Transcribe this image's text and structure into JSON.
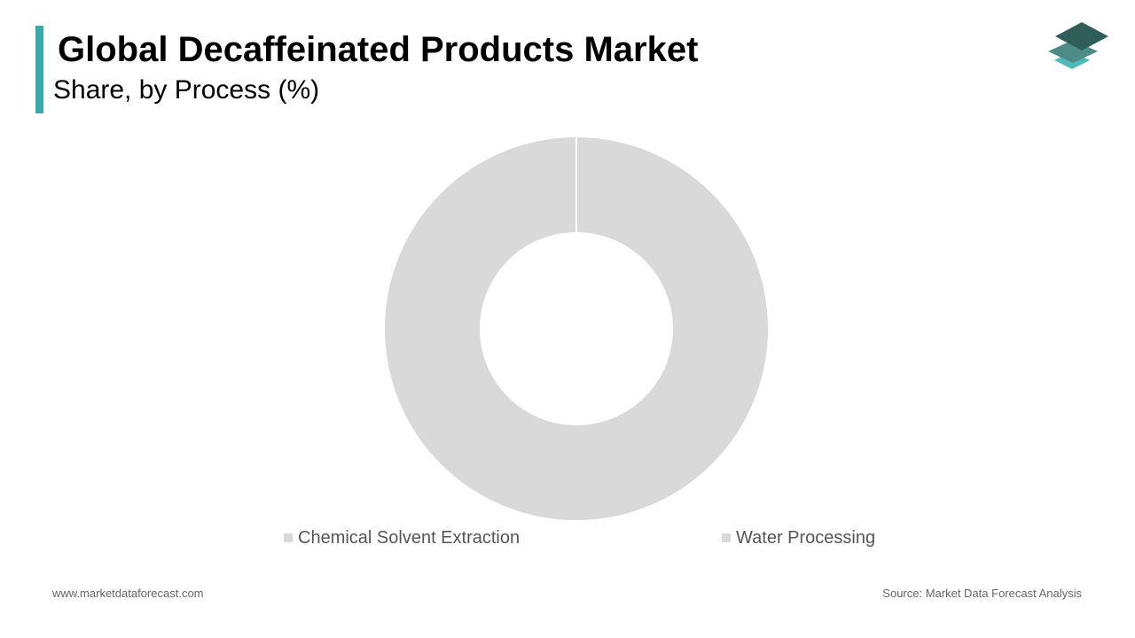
{
  "header": {
    "title": "Global Decaffeinated Products Market",
    "subtitle": "Share, by Process (%)",
    "accent_color": "#3aa9a9",
    "logo_icon": "stacked-layers-logo-icon"
  },
  "chart_data": {
    "type": "pie",
    "style": "donut",
    "series": [
      {
        "name": "Chemical Solvent Extraction",
        "value": 100,
        "color": "#d9d9d9"
      },
      {
        "name": "Water Processing",
        "value": 0,
        "color": "#d9d9d9"
      }
    ],
    "legend_position": "bottom",
    "data_labels": false
  },
  "footer": {
    "website": "www.marketdataforecast.com",
    "source": "Source: Market Data Forecast Analysis"
  }
}
